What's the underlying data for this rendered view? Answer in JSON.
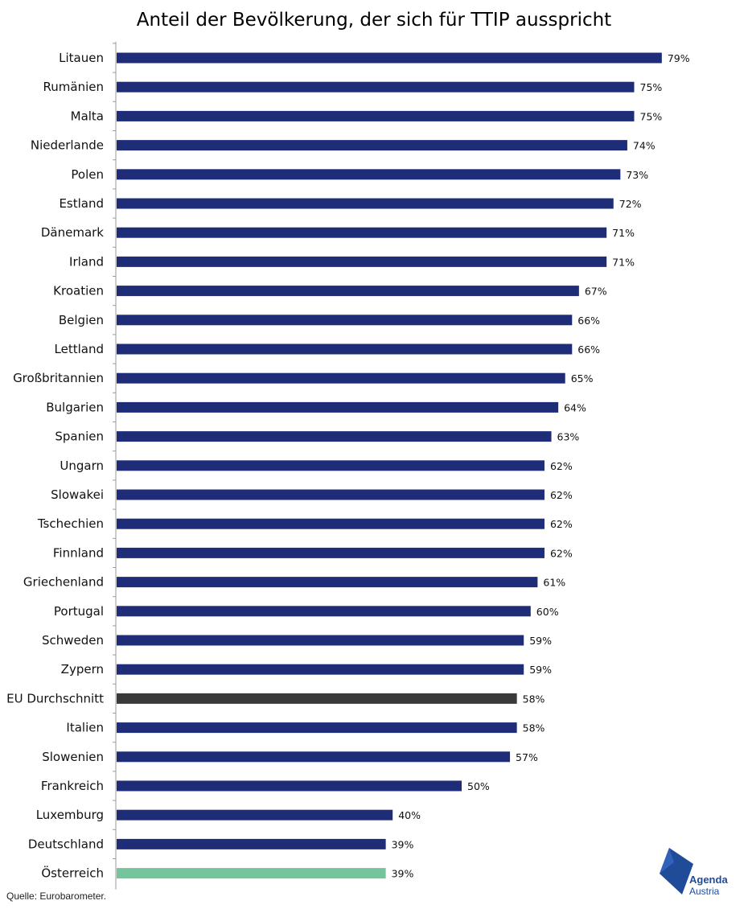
{
  "title": "Anteil der Bevölkerung, der sich für TTIP ausspricht",
  "source": "Quelle: Eurobarometer.",
  "logo": {
    "line1": "Agenda",
    "line2": "Austria"
  },
  "colors": {
    "default": "#1f2d78",
    "eu_average": "#3a3a3a",
    "austria": "#74c49c",
    "axis": "#999999"
  },
  "chart_data": {
    "type": "bar",
    "orientation": "horizontal",
    "title": "Anteil der Bevölkerung, der sich für TTIP ausspricht",
    "xlim": [
      0,
      100
    ],
    "value_suffix": "%",
    "grid": false,
    "categories": [
      "Litauen",
      "Rumänien",
      "Malta",
      "Niederlande",
      "Polen",
      "Estland",
      "Dänemark",
      "Irland",
      "Kroatien",
      "Belgien",
      "Lettland",
      "Großbritannien",
      "Bulgarien",
      "Spanien",
      "Ungarn",
      "Slowakei",
      "Tschechien",
      "Finnland",
      "Griechenland",
      "Portugal",
      "Schweden",
      "Zypern",
      "EU Durchschnitt",
      "Italien",
      "Slowenien",
      "Frankreich",
      "Luxemburg",
      "Deutschland",
      "Österreich"
    ],
    "values": [
      79,
      75,
      75,
      74,
      73,
      72,
      71,
      71,
      67,
      66,
      66,
      65,
      64,
      63,
      62,
      62,
      62,
      62,
      61,
      60,
      59,
      59,
      58,
      58,
      57,
      50,
      40,
      39,
      39
    ],
    "highlight": {
      "EU Durchschnitt": "eu_average",
      "Österreich": "austria"
    }
  }
}
